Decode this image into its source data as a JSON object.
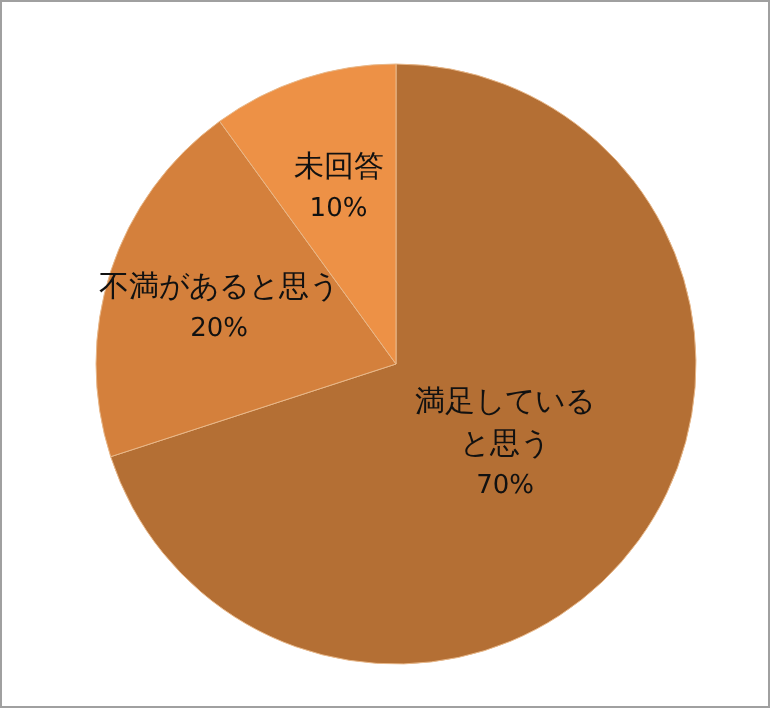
{
  "chart_data": {
    "type": "pie",
    "categories": [
      "満足していると思う",
      "不満があると思う",
      "未回答"
    ],
    "values": [
      70,
      20,
      10
    ],
    "colors": [
      "#b46f34",
      "#d4803c",
      "#ed9146"
    ],
    "value_labels": [
      "70%",
      "20%",
      "10%"
    ],
    "legend": false
  }
}
